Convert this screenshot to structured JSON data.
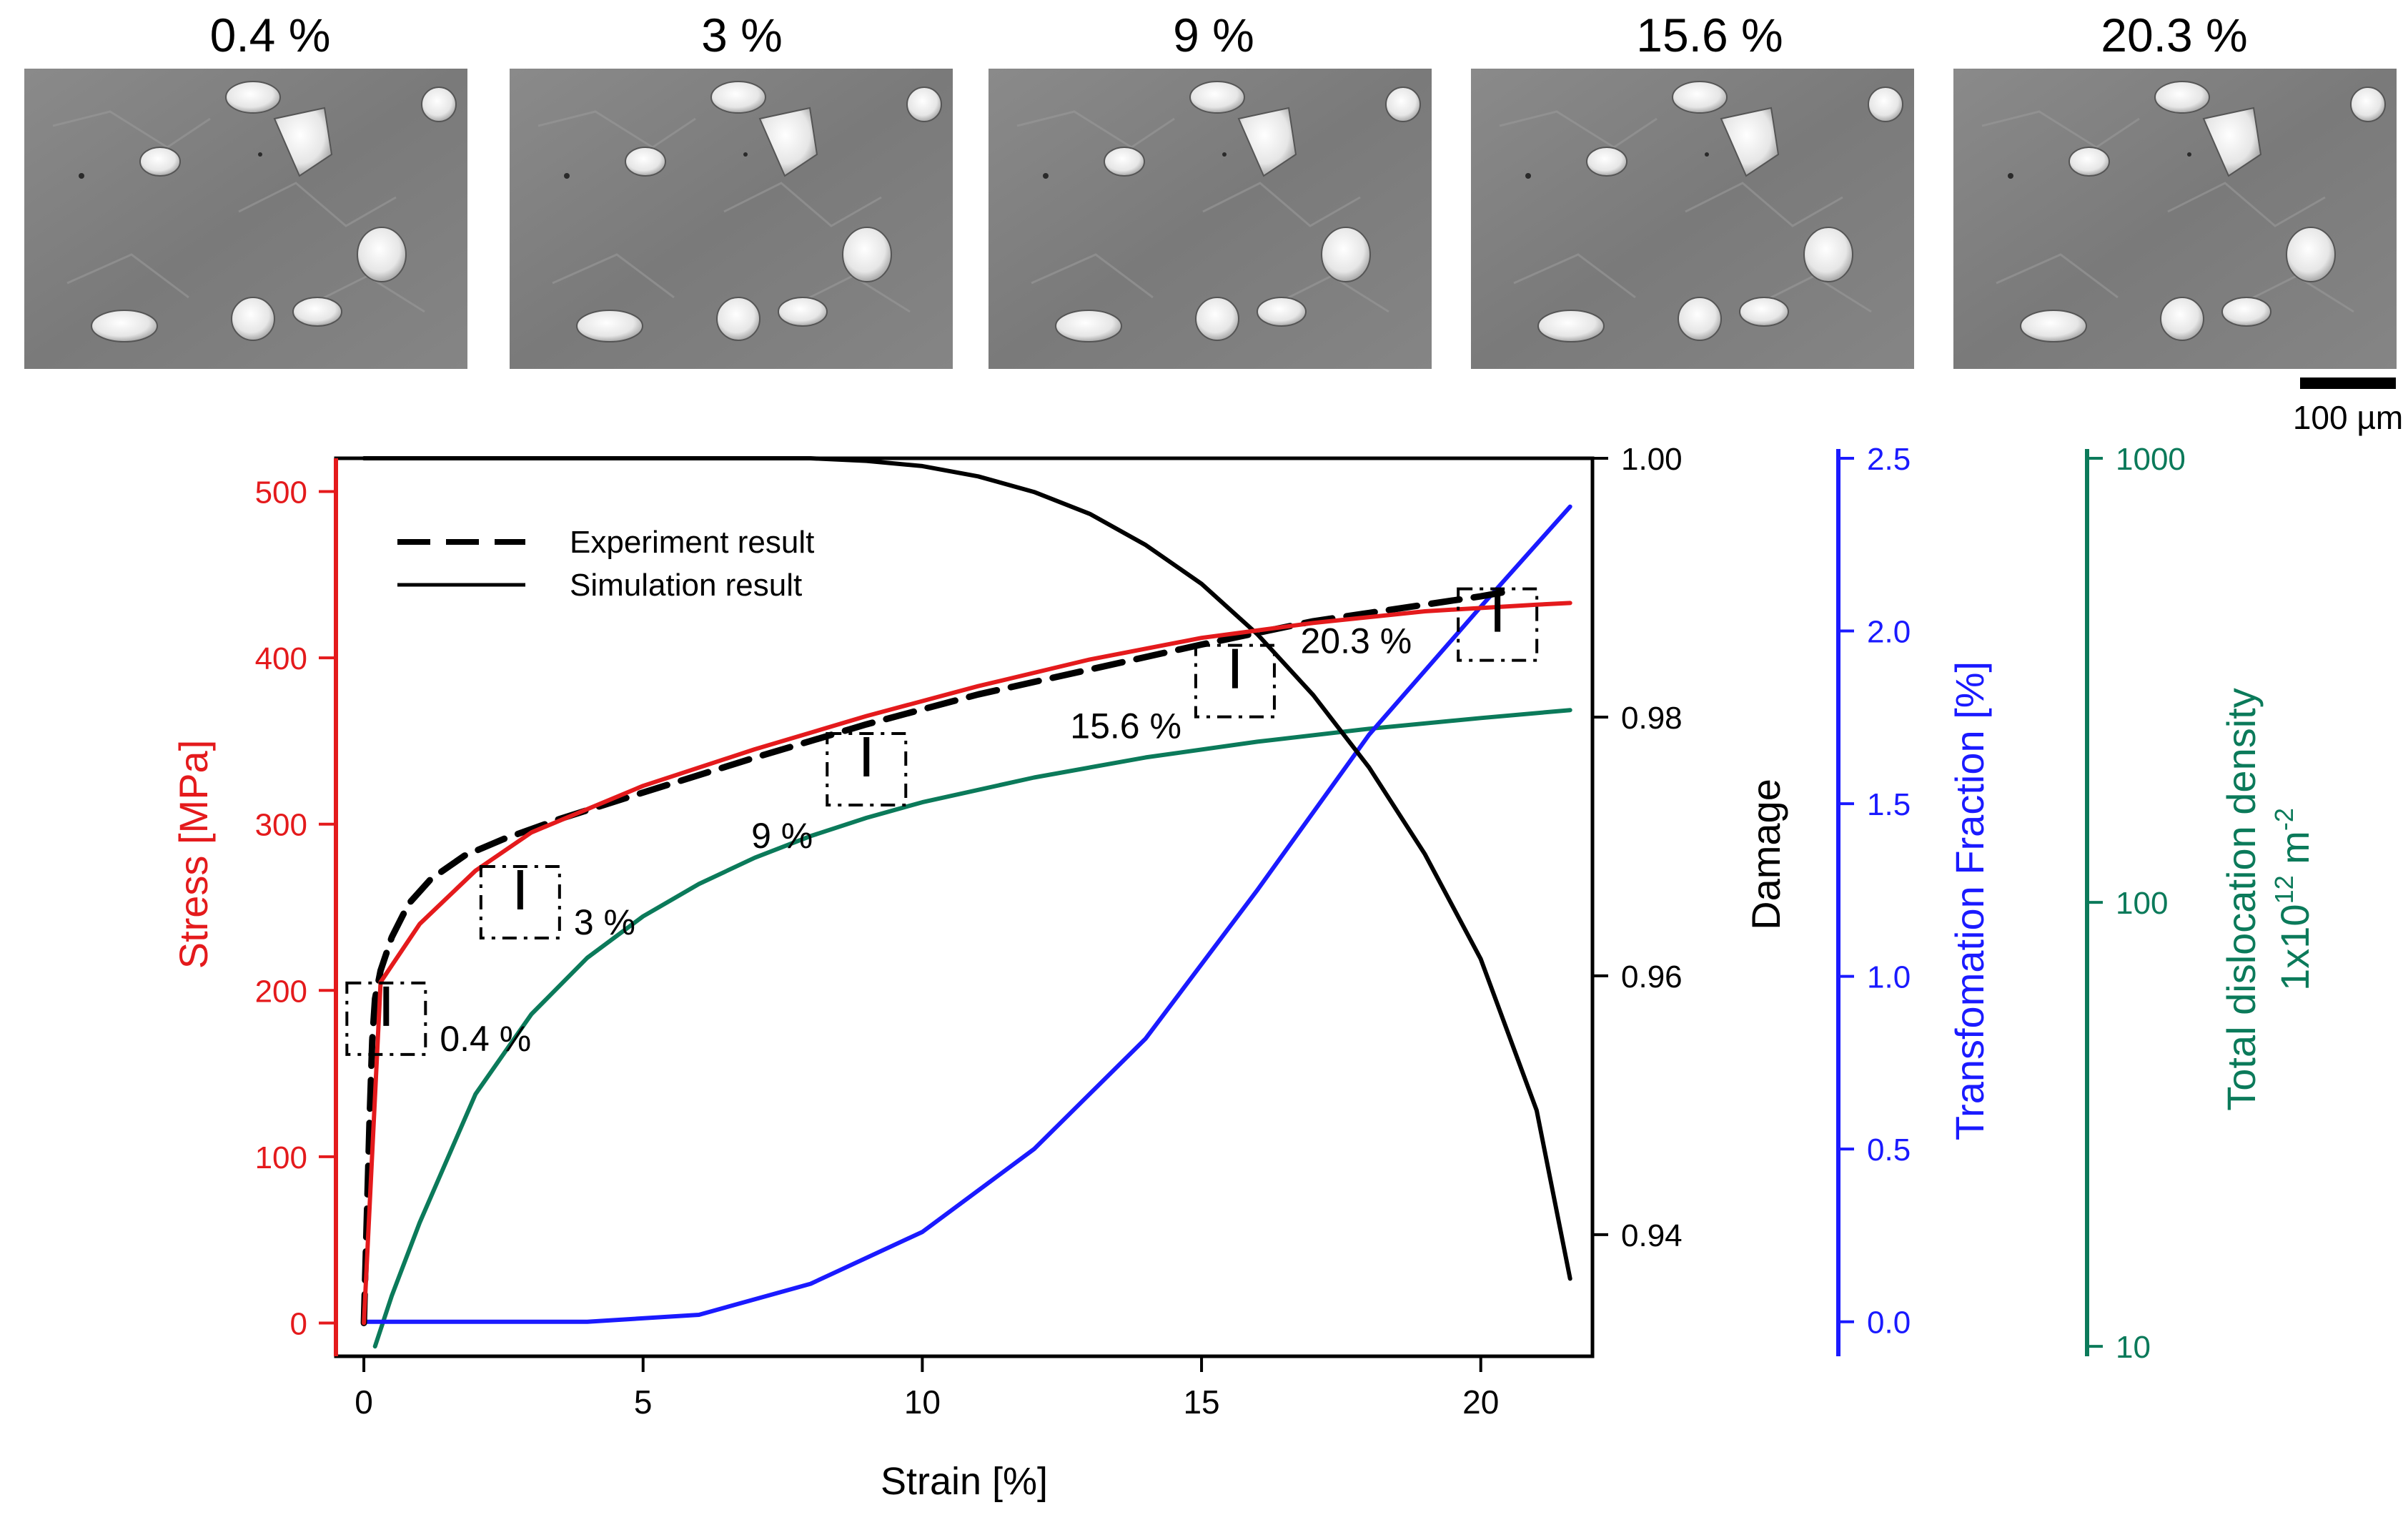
{
  "micrographs": {
    "labels": [
      "0.4 %",
      "3 %",
      "9 %",
      "15.6 %",
      "20.3 %"
    ],
    "scale_bar_label": "100 µm"
  },
  "colors": {
    "stress": "#e41a1c",
    "damage": "#000000",
    "transformation": "#1a1aff",
    "dislocation": "#0b7a5a",
    "axis": "#000000"
  },
  "chart_data": {
    "type": "line",
    "xlabel": "Strain [%]",
    "xlim": [
      -0.5,
      22
    ],
    "xticks": [
      0,
      5,
      10,
      15,
      20
    ],
    "axes": {
      "stress": {
        "label": "Stress [MPa]",
        "range": [
          -20,
          520
        ],
        "ticks": [
          0,
          100,
          200,
          300,
          400,
          500
        ]
      },
      "damage": {
        "label": "Damage",
        "range": [
          0.9306,
          1.0
        ],
        "ticks": [
          0.94,
          0.96,
          0.98,
          1.0
        ],
        "tick_labels": [
          "0.94",
          "0.96",
          "0.98",
          "1.00"
        ]
      },
      "transformation": {
        "label": "Transfomation Fraction [%]",
        "range": [
          -0.1,
          2.5
        ],
        "ticks": [
          0.0,
          0.5,
          1.0,
          1.5,
          2.0,
          2.5
        ],
        "tick_labels": [
          "0.0",
          "0.5",
          "1.0",
          "1.5",
          "2.0",
          "2.5"
        ]
      },
      "dislocation": {
        "label_line1": "Total dislocation density",
        "label_line2": "1x10",
        "label_sup_12": "12",
        "label_unit": " m",
        "label_sup_m2": "-2",
        "scale": "log",
        "range": [
          9.5,
          1000
        ],
        "ticks": [
          10,
          100,
          1000
        ],
        "tick_labels": [
          "10",
          "100",
          "1000"
        ]
      }
    },
    "series": [
      {
        "name": "Experiment result",
        "axis": "stress",
        "style": "dashed",
        "x": [
          0,
          0.05,
          0.1,
          0.15,
          0.2,
          0.3,
          0.5,
          0.8,
          1.2,
          1.8,
          2.5,
          3.5,
          5,
          7,
          9,
          11,
          13,
          15,
          16,
          17,
          18,
          19,
          20,
          20.5
        ],
        "y": [
          0,
          60,
          120,
          170,
          195,
          212,
          232,
          252,
          267,
          281,
          291,
          303,
          319,
          340,
          360,
          378,
          393,
          408,
          415,
          422,
          427,
          432,
          437,
          440
        ]
      },
      {
        "name": "Simulation result",
        "axis": "stress",
        "style": "solid",
        "x": [
          0,
          0.3,
          0.5,
          1,
          2,
          3,
          5,
          7,
          9,
          11,
          13,
          15,
          17,
          19,
          21,
          21.6
        ],
        "y": [
          0,
          205,
          215,
          240,
          272,
          295,
          323,
          345,
          365,
          383,
          399,
          412,
          421,
          428,
          432,
          433
        ]
      },
      {
        "name": "Damage",
        "axis": "damage",
        "style": "solid",
        "x": [
          0,
          2,
          4,
          6,
          8,
          9,
          10,
          11,
          12,
          13,
          14,
          15,
          16,
          17,
          18,
          19,
          20,
          21,
          21.6
        ],
        "y": [
          1.0,
          1.0,
          1.0,
          1.0,
          1.0,
          0.9998,
          0.9994,
          0.9986,
          0.9974,
          0.9957,
          0.9933,
          0.9903,
          0.9864,
          0.9817,
          0.9761,
          0.9694,
          0.9613,
          0.9496,
          0.9366
        ]
      },
      {
        "name": "Transformation fraction",
        "axis": "transformation",
        "style": "solid",
        "x": [
          0,
          2,
          4,
          6,
          8,
          10,
          12,
          14,
          16,
          18,
          20,
          21.6
        ],
        "y": [
          0,
          0,
          0,
          0.02,
          0.11,
          0.26,
          0.5,
          0.82,
          1.25,
          1.7,
          2.07,
          2.36
        ]
      },
      {
        "name": "Total dislocation density",
        "axis": "dislocation",
        "style": "solid",
        "x": [
          0.2,
          0.5,
          1,
          2,
          3,
          4,
          5,
          6,
          7,
          8,
          9,
          10,
          12,
          14,
          16,
          18,
          20,
          21.6
        ],
        "y": [
          10,
          13,
          19,
          37,
          56,
          75,
          93,
          110,
          126,
          141,
          155,
          168,
          191,
          212,
          230,
          246,
          260,
          271
        ]
      }
    ],
    "strain_markers": [
      {
        "label": "0.4 %",
        "x": 0.4,
        "stress": 183
      },
      {
        "label": "3 %",
        "x": 2.8,
        "stress": 253
      },
      {
        "label": "9 %",
        "x": 9.0,
        "stress": 333
      },
      {
        "label": "15.6 %",
        "x": 15.6,
        "stress": 386
      },
      {
        "label": "20.3 %",
        "x": 20.3,
        "stress": 420
      }
    ],
    "legend": {
      "position": "top-left",
      "entries": [
        "Experiment result",
        "Simulation result"
      ]
    }
  }
}
